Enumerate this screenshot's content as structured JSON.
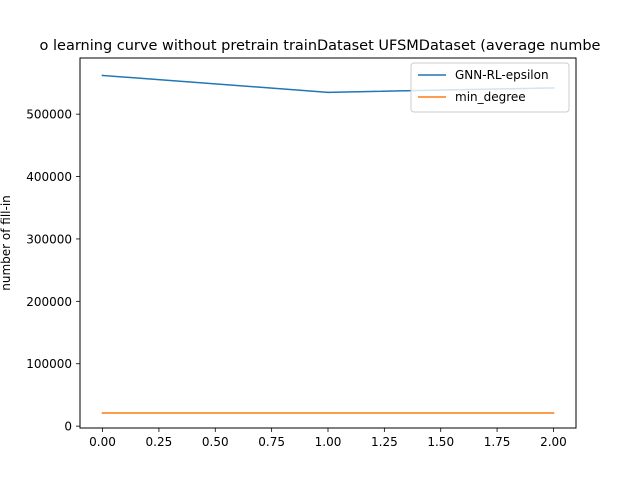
{
  "chart_data": {
    "type": "line",
    "title": "o learning curve without pretrain trainDataset UFSMDataset (average numbe",
    "xlabel": "",
    "ylabel": "number of fill-in",
    "xlim": [
      -0.1,
      2.1
    ],
    "ylim": [
      -3000,
      590000
    ],
    "x_ticks": [
      0.0,
      0.25,
      0.5,
      0.75,
      1.0,
      1.25,
      1.5,
      1.75,
      2.0
    ],
    "x_tick_labels": [
      "0.00",
      "0.25",
      "0.50",
      "0.75",
      "1.00",
      "1.25",
      "1.50",
      "1.75",
      "2.00"
    ],
    "y_ticks": [
      0,
      100000,
      200000,
      300000,
      400000,
      500000
    ],
    "y_tick_labels": [
      "0",
      "100000",
      "200000",
      "300000",
      "400000",
      "500000"
    ],
    "grid": false,
    "legend_position": "top-right",
    "series": [
      {
        "name": "GNN-RL-epsilon",
        "color": "#1f77b4",
        "x": [
          0,
          1,
          2
        ],
        "y": [
          562000,
          535000,
          542000
        ]
      },
      {
        "name": "min_degree",
        "color": "#ff7f0e",
        "x": [
          0,
          1,
          2
        ],
        "y": [
          21000,
          21000,
          21000
        ]
      }
    ]
  }
}
